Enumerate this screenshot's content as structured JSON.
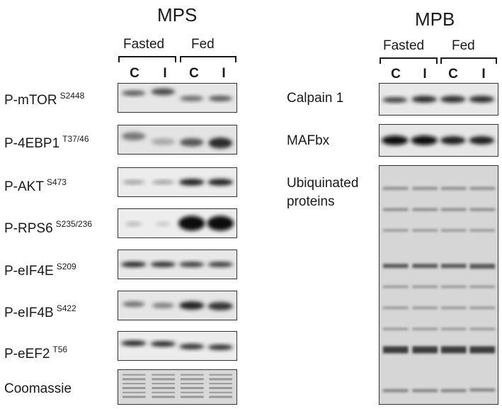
{
  "mps": {
    "title": "MPS",
    "groups": [
      "Fasted",
      "Fed"
    ],
    "lanes": [
      "C",
      "I",
      "C",
      "I"
    ],
    "rows": [
      {
        "name": "P-mTOR",
        "site": "S2448"
      },
      {
        "name": "P-4EBP1",
        "site": "T37/46"
      },
      {
        "name": "P-AKT",
        "site": "S473"
      },
      {
        "name": "P-RPS6",
        "site": "S235/236"
      },
      {
        "name": "P-eIF4E",
        "site": "S209"
      },
      {
        "name": "P-eIF4B",
        "site": "S422"
      },
      {
        "name": "P-eEF2",
        "site": "T56"
      },
      {
        "name": "Coomassie",
        "site": ""
      }
    ]
  },
  "mpb": {
    "title": "MPB",
    "groups": [
      "Fasted",
      "Fed"
    ],
    "lanes": [
      "C",
      "I",
      "C",
      "I"
    ],
    "rows": [
      {
        "name": "Calpain 1"
      },
      {
        "name": "MAFbx"
      },
      {
        "name": "Ubiquinated proteins"
      }
    ]
  }
}
